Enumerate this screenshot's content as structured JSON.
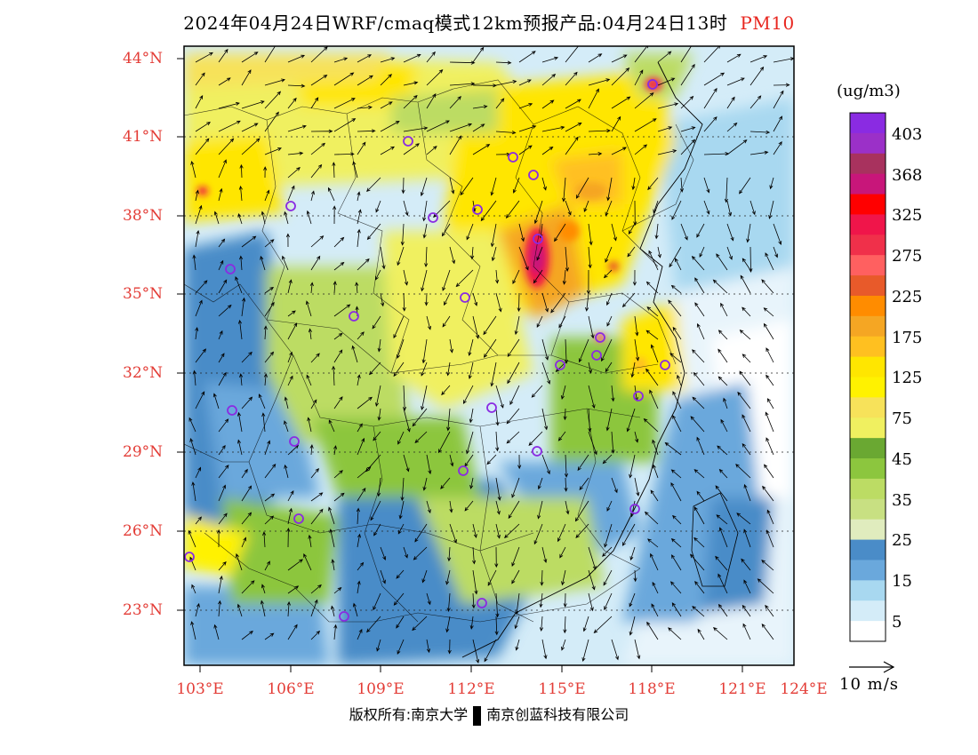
{
  "title": {
    "main": "2024年04月24日WRF/cmaq模式12km预报产品:04月24日13时",
    "pollutant": "PM10",
    "pollutant_color": "#e8261f"
  },
  "map": {
    "lat_labels": [
      "44°N",
      "41°N",
      "38°N",
      "35°N",
      "32°N",
      "29°N",
      "26°N",
      "23°N"
    ],
    "lon_labels": [
      "103°E",
      "106°E",
      "109°E",
      "112°E",
      "115°E",
      "118°E",
      "121°E",
      "124°E"
    ],
    "axis_label_color": "#e33c36",
    "station_marker_color": "#8a2be2",
    "station_count": 28
  },
  "colorbar": {
    "unit": "(ug/m3)",
    "bands": [
      "#8a2be2",
      "#9b30c8",
      "#a8325e",
      "#c8167a",
      "#ff0000",
      "#f0154a",
      "#f0304a",
      "#ff6060",
      "#e85a2a",
      "#ff8c00",
      "#f5a623",
      "#ffc020",
      "#ffe600",
      "#fff200",
      "#f7e25a",
      "#f0f060",
      "#6aa832",
      "#8cc63e",
      "#bcdc64",
      "#c8e082",
      "#e0ecbe",
      "#4a8cc8",
      "#6aa8dc",
      "#a8d8f0",
      "#d4ecf8",
      "#ffffff"
    ],
    "labels": [
      "403",
      "368",
      "325",
      "275",
      "225",
      "175",
      "125",
      "75",
      "45",
      "35",
      "25",
      "15",
      "5"
    ]
  },
  "wind_reference": {
    "label": "10 m/s"
  },
  "footer": {
    "copyright_left": "版权所有:南京大学",
    "copyright_right": "南京创蓝科技有限公司"
  }
}
